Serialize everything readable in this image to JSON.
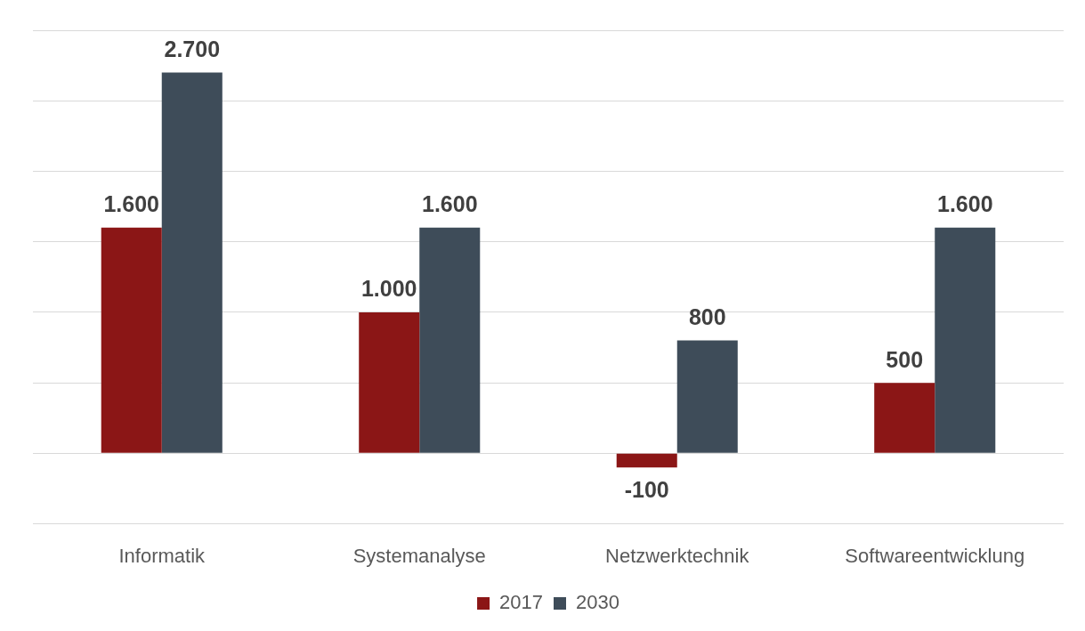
{
  "chart_data": {
    "type": "bar",
    "categories": [
      "Informatik",
      "Systemanalyse",
      "Netzwerktechnik",
      "Softwareentwicklung"
    ],
    "series": [
      {
        "name": "2017",
        "color": "#8b1616",
        "values": [
          1600,
          1000,
          -100,
          500
        ],
        "value_labels": [
          "1.600",
          "1.000",
          "-100",
          "500"
        ]
      },
      {
        "name": "2030",
        "color": "#3e4c59",
        "values": [
          2700,
          1600,
          800,
          1600
        ],
        "value_labels": [
          "2.700",
          "1.600",
          "800",
          "1.600"
        ]
      }
    ],
    "ylim": [
      -500,
      3000
    ],
    "yticks": [
      {
        "value": -500,
        "label": null
      },
      {
        "value": 0,
        "label": null
      },
      {
        "value": 500,
        "label": null
      },
      {
        "value": 1000,
        "label": null
      },
      {
        "value": 1500,
        "label": null
      },
      {
        "value": 2000,
        "label": null
      },
      {
        "value": 2500,
        "label": null
      },
      {
        "value": 3000,
        "label": null
      }
    ],
    "tick_labels": "x",
    "grid": "y",
    "legend": "bottom"
  }
}
